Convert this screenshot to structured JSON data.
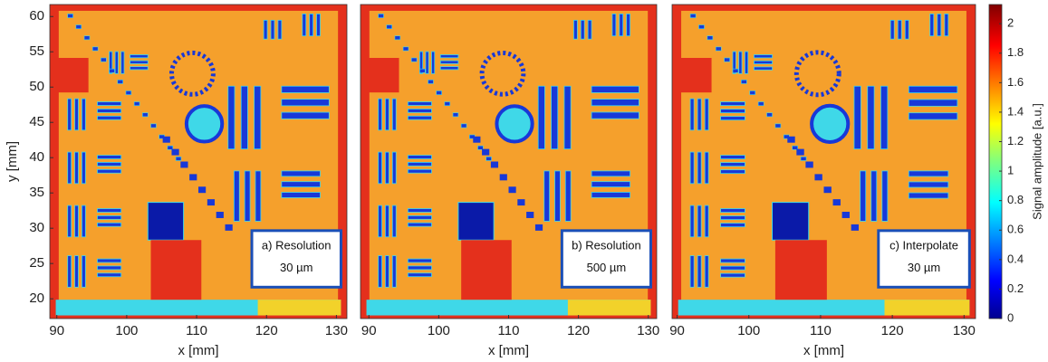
{
  "chart_data": [
    {
      "type": "image",
      "x_label": "x [mm]",
      "y_label": "y [mm]",
      "xlim": [
        89,
        131.5
      ],
      "xticks": [
        90,
        100,
        110,
        120,
        130
      ],
      "ylim": [
        17.2,
        61.7
      ],
      "yticks": [
        20,
        25,
        30,
        35,
        40,
        45,
        50,
        55,
        60
      ],
      "annotation": [
        "a) Resolution",
        "30 µm"
      ]
    },
    {
      "type": "image",
      "x_label": "x [mm]",
      "xlim": [
        88.8,
        131.2
      ],
      "xticks": [
        90,
        100,
        110,
        120,
        130
      ],
      "ylim": [
        17.2,
        61.7
      ],
      "annotation": [
        "b) Resolution",
        "500 µm"
      ]
    },
    {
      "type": "image",
      "x_label": "x [mm]",
      "xlim": [
        89.3,
        131.6
      ],
      "xticks": [
        90,
        100,
        110,
        120,
        130
      ],
      "ylim": [
        17.2,
        61.7
      ],
      "annotation": [
        "c) Interpolate",
        "30 µm"
      ]
    }
  ],
  "colorbar": {
    "label": "Signal amplitude [a.u.]",
    "colormap": "jet",
    "lim": [
      0,
      2.13
    ],
    "ticks": [
      0,
      0.2,
      0.4,
      0.6,
      0.8,
      1,
      1.2,
      1.4,
      1.6,
      1.8,
      2
    ]
  }
}
